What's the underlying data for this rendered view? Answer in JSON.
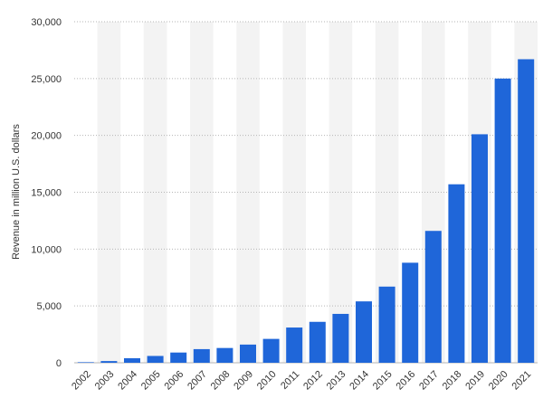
{
  "chart_data": {
    "type": "bar",
    "title": "",
    "xlabel": "",
    "ylabel": "Revenue in million U.S. dollars",
    "categories": [
      "2002",
      "2003",
      "2004",
      "2005",
      "2006",
      "2007",
      "2008",
      "2009",
      "2010",
      "2011",
      "2012",
      "2013",
      "2014",
      "2015",
      "2016",
      "2017",
      "2018",
      "2019",
      "2020",
      "2021"
    ],
    "values": [
      50,
      150,
      400,
      600,
      900,
      1200,
      1300,
      1600,
      2100,
      3100,
      3600,
      4300,
      5400,
      6700,
      8800,
      11600,
      15700,
      20100,
      25000,
      26700
    ],
    "ylim": [
      0,
      30000
    ],
    "yticks": [
      0,
      5000,
      10000,
      15000,
      20000,
      25000,
      30000
    ],
    "ytick_labels": [
      "0",
      "5,000",
      "10,000",
      "15,000",
      "20,000",
      "25,000",
      "30,000"
    ],
    "grid": "horizontal dotted",
    "alternating_column_bands": true,
    "bar_color": "#1f66d9",
    "band_color": "#f3f3f3",
    "grid_color": "#b5b5b5",
    "text_color": "#333333"
  }
}
